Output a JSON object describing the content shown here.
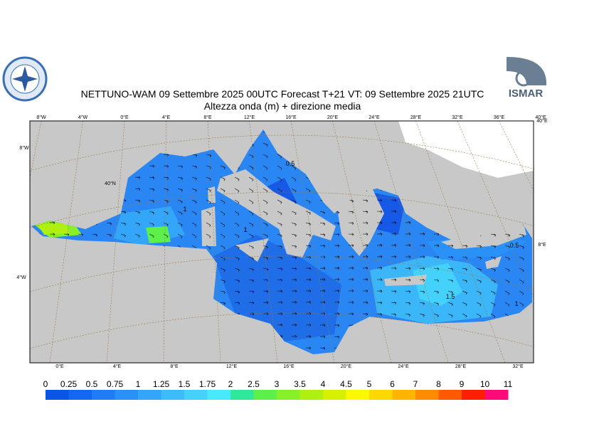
{
  "header": {
    "title": "NETTUNO-WAM  09 Settembre 2025 00UTC Forecast T+21 VT: 09 Settembre 2025 21UTC",
    "subtitle": "Altezza onda (m) + direzione media",
    "logo_right": "ISMAR"
  },
  "map": {
    "top_labels": [
      "8°W",
      "4°W",
      "0°E",
      "4°E",
      "8°E",
      "12°E",
      "16°E",
      "20°E",
      "24°E",
      "28°E",
      "32°E",
      "36°E",
      "40°E"
    ],
    "bottom_labels": [
      "0°E",
      "4°E",
      "8°E",
      "12°E",
      "16°E",
      "20°E",
      "24°E",
      "28°E",
      "32°E"
    ],
    "left_labels": [
      "8°W",
      "40°N",
      "4°W"
    ],
    "right_labels": [
      "40°E",
      "8°E"
    ],
    "contour_labels": [
      "0.5",
      "1",
      "1",
      "1.5",
      "1",
      "0.5"
    ]
  },
  "legend": {
    "labels": [
      "0",
      "0.25",
      "0.5",
      "0.75",
      "1",
      "1.25",
      "1.5",
      "1.75",
      "2",
      "2.5",
      "3",
      "3.5",
      "4",
      "4.5",
      "5",
      "6",
      "7",
      "8",
      "9",
      "10",
      "11"
    ],
    "colors": [
      "#0a55e6",
      "#1467f0",
      "#1f7cf5",
      "#2a91f8",
      "#34a6fa",
      "#3dbcfc",
      "#44d2fd",
      "#48e8fd",
      "#30e89a",
      "#5ef04a",
      "#88f028",
      "#b0f010",
      "#d6f000",
      "#fcf800",
      "#ffd800",
      "#ffb400",
      "#ff8c00",
      "#ff5a00",
      "#ff1e00",
      "#ff0a78"
    ]
  }
}
